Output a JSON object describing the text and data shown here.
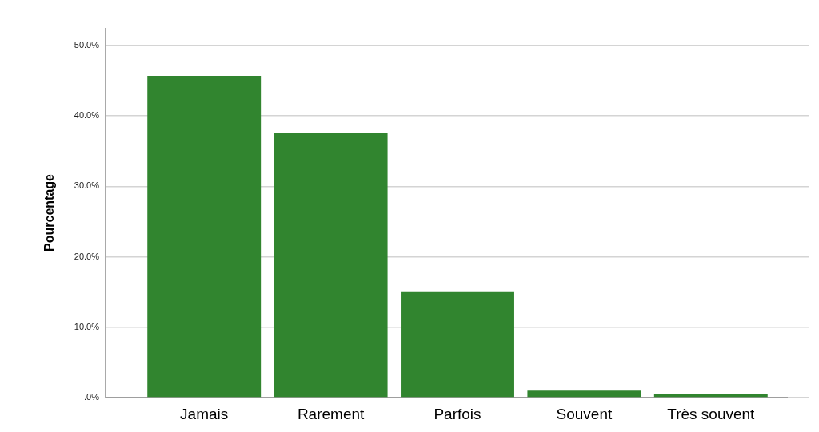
{
  "chart_data": {
    "type": "bar",
    "ylabel": "Pourcentage",
    "categories": [
      "Jamais",
      "Rarement",
      "Parfois",
      "Souvent",
      "Très souvent"
    ],
    "values": [
      45.7,
      37.6,
      15.0,
      1.0,
      0.5
    ],
    "color": "#31852f",
    "ylim": [
      0,
      52.5
    ],
    "yticks": [
      {
        "value": 0,
        "label": ".0%"
      },
      {
        "value": 10,
        "label": "10.0%"
      },
      {
        "value": 20,
        "label": "20.0%"
      },
      {
        "value": 30,
        "label": "30.0%"
      },
      {
        "value": 40,
        "label": "40.0%"
      },
      {
        "value": 50,
        "label": "50.0%"
      }
    ],
    "grid": "y"
  }
}
